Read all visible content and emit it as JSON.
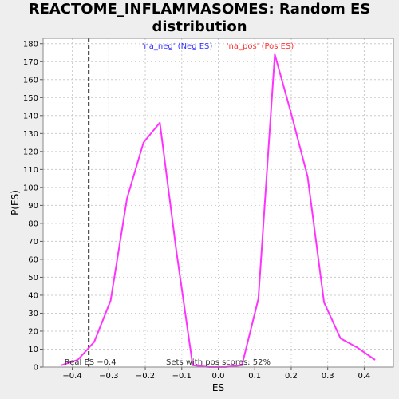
{
  "chart_data": {
    "type": "line",
    "title": "REACTOME_INFLAMMASOMES: Random ES distribution",
    "xlabel": "ES",
    "ylabel": "P(ES)",
    "xlim": [
      -0.48,
      0.48
    ],
    "ylim": [
      0,
      183
    ],
    "xticks": [
      -0.4,
      -0.3,
      -0.2,
      -0.1,
      0.0,
      0.1,
      0.2,
      0.3,
      0.4
    ],
    "xtick_labels": [
      "−0.4",
      "−0.3",
      "−0.2",
      "−0.1",
      "0.0",
      "0.1",
      "0.2",
      "0.3",
      "0.4"
    ],
    "yticks": [
      0,
      10,
      20,
      30,
      40,
      50,
      60,
      70,
      80,
      90,
      100,
      110,
      120,
      130,
      140,
      150,
      160,
      170,
      180
    ],
    "grid": true,
    "series": [
      {
        "name": "",
        "color": "#ff33ff",
        "x": [
          -0.43,
          -0.385,
          -0.34,
          -0.295,
          -0.25,
          -0.205,
          -0.16,
          -0.115,
          -0.07,
          -0.025,
          0.02,
          0.065,
          0.11,
          0.155,
          0.2,
          0.245,
          0.29,
          0.335,
          0.38,
          0.43
        ],
        "y": [
          1,
          4,
          14,
          37,
          94,
          125,
          136,
          65,
          1,
          0,
          0,
          1,
          38,
          174,
          141,
          106,
          36,
          16,
          11,
          4
        ]
      }
    ],
    "legend": [
      {
        "label": "'na_neg' (Neg ES)",
        "color": "#3333ff"
      },
      {
        "label": "'na_pos' (Pos ES)",
        "color": "#ff3333"
      }
    ],
    "legend_position": "top-center",
    "reference_line": {
      "x": -0.355,
      "style": "dashed",
      "color": "#333333",
      "label": "Real ES −0.4"
    },
    "annotations": [
      {
        "text": "Sets with pos scores: 52%"
      }
    ]
  }
}
